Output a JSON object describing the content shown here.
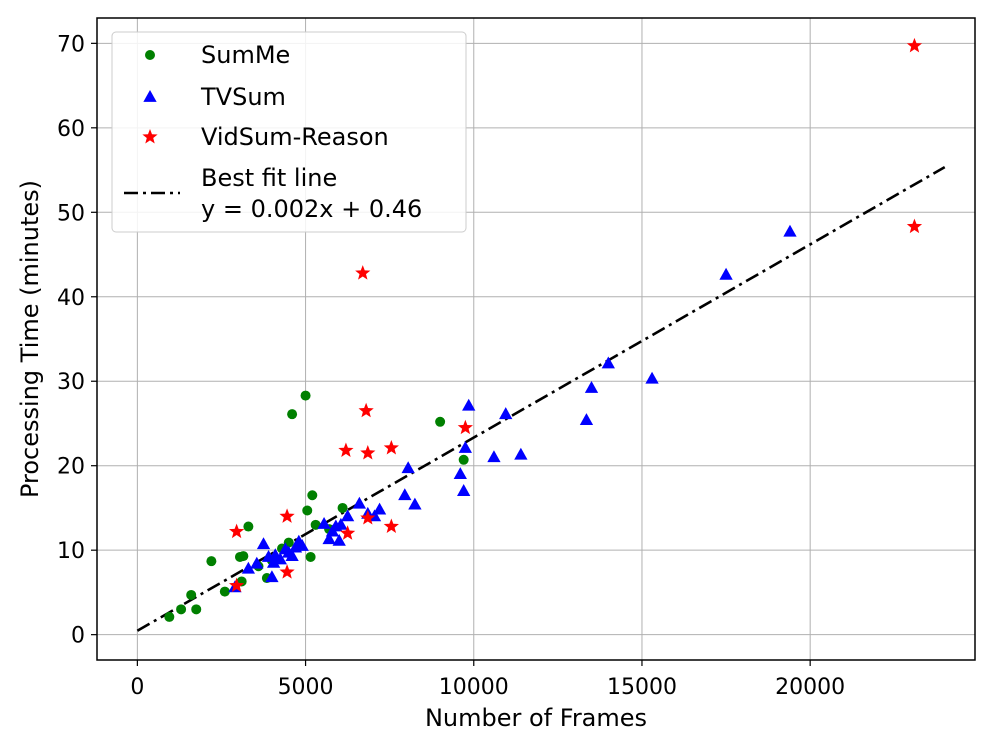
{
  "chart_data": {
    "type": "scatter",
    "xlabel": "Number of Frames",
    "ylabel": "Processing Time (minutes)",
    "xlim": [
      -1200,
      24900
    ],
    "ylim": [
      -3,
      73
    ],
    "xticks": [
      0,
      5000,
      10000,
      15000,
      20000
    ],
    "yticks": [
      0,
      10,
      20,
      30,
      40,
      50,
      60,
      70
    ],
    "grid": true,
    "legend_position": "top-left",
    "series": [
      {
        "name": "SumMe",
        "marker": "circle",
        "color": "#008000",
        "points": [
          [
            950,
            2.1
          ],
          [
            1300,
            3.0
          ],
          [
            1600,
            4.7
          ],
          [
            1750,
            3.0
          ],
          [
            2200,
            8.7
          ],
          [
            2600,
            5.1
          ],
          [
            3050,
            9.2
          ],
          [
            3100,
            6.3
          ],
          [
            3150,
            9.3
          ],
          [
            3300,
            12.8
          ],
          [
            3600,
            8.1
          ],
          [
            3850,
            6.7
          ],
          [
            4000,
            8.8
          ],
          [
            4300,
            10.2
          ],
          [
            4500,
            10.9
          ],
          [
            4600,
            26.1
          ],
          [
            5000,
            28.3
          ],
          [
            5050,
            14.7
          ],
          [
            5150,
            9.2
          ],
          [
            5200,
            16.5
          ],
          [
            5300,
            13.0
          ],
          [
            5700,
            12.5
          ],
          [
            6100,
            15.0
          ],
          [
            9000,
            25.2
          ],
          [
            9700,
            20.7
          ]
        ]
      },
      {
        "name": "TVSum",
        "marker": "triangle",
        "color": "#0000ff",
        "points": [
          [
            2900,
            5.6
          ],
          [
            3300,
            7.8
          ],
          [
            3550,
            8.4
          ],
          [
            3750,
            10.7
          ],
          [
            3900,
            9.2
          ],
          [
            4000,
            6.8
          ],
          [
            4050,
            8.5
          ],
          [
            4100,
            9.4
          ],
          [
            4250,
            8.9
          ],
          [
            4400,
            10.1
          ],
          [
            4500,
            9.7
          ],
          [
            4600,
            9.3
          ],
          [
            4700,
            10.3
          ],
          [
            4800,
            11.0
          ],
          [
            4900,
            10.5
          ],
          [
            5550,
            13.1
          ],
          [
            5700,
            11.3
          ],
          [
            5800,
            12.2
          ],
          [
            5900,
            12.8
          ],
          [
            6000,
            11.1
          ],
          [
            6050,
            13.0
          ],
          [
            6250,
            14.0
          ],
          [
            6600,
            15.5
          ],
          [
            6850,
            14.3
          ],
          [
            7050,
            14.0
          ],
          [
            7200,
            14.8
          ],
          [
            7950,
            16.5
          ],
          [
            8050,
            19.7
          ],
          [
            8250,
            15.4
          ],
          [
            9600,
            19.0
          ],
          [
            9700,
            17.0
          ],
          [
            9750,
            22.1
          ],
          [
            9850,
            27.1
          ],
          [
            10600,
            21.0
          ],
          [
            10950,
            26.1
          ],
          [
            11400,
            21.3
          ],
          [
            13350,
            25.4
          ],
          [
            13500,
            29.2
          ],
          [
            14000,
            32.1
          ],
          [
            15300,
            30.3
          ],
          [
            17500,
            42.6
          ],
          [
            19400,
            47.7
          ]
        ]
      },
      {
        "name": "VidSum-Reason",
        "marker": "star",
        "color": "#ff0000",
        "points": [
          [
            2950,
            12.2
          ],
          [
            2950,
            5.8
          ],
          [
            4450,
            14.0
          ],
          [
            4450,
            7.4
          ],
          [
            6200,
            21.8
          ],
          [
            6250,
            12.0
          ],
          [
            6700,
            42.8
          ],
          [
            6800,
            26.5
          ],
          [
            6850,
            21.5
          ],
          [
            6850,
            13.8
          ],
          [
            7550,
            22.1
          ],
          [
            7550,
            12.8
          ],
          [
            9750,
            24.5
          ],
          [
            23100,
            69.7
          ],
          [
            23100,
            48.3
          ]
        ]
      }
    ],
    "fit_line": {
      "label": "Best fit line",
      "equation": "y = 0.002x + 0.46",
      "slope": 0.002287,
      "intercept": 0.46,
      "x_range": [
        0,
        24000
      ],
      "color": "#000000",
      "style": "dash-dot"
    }
  }
}
